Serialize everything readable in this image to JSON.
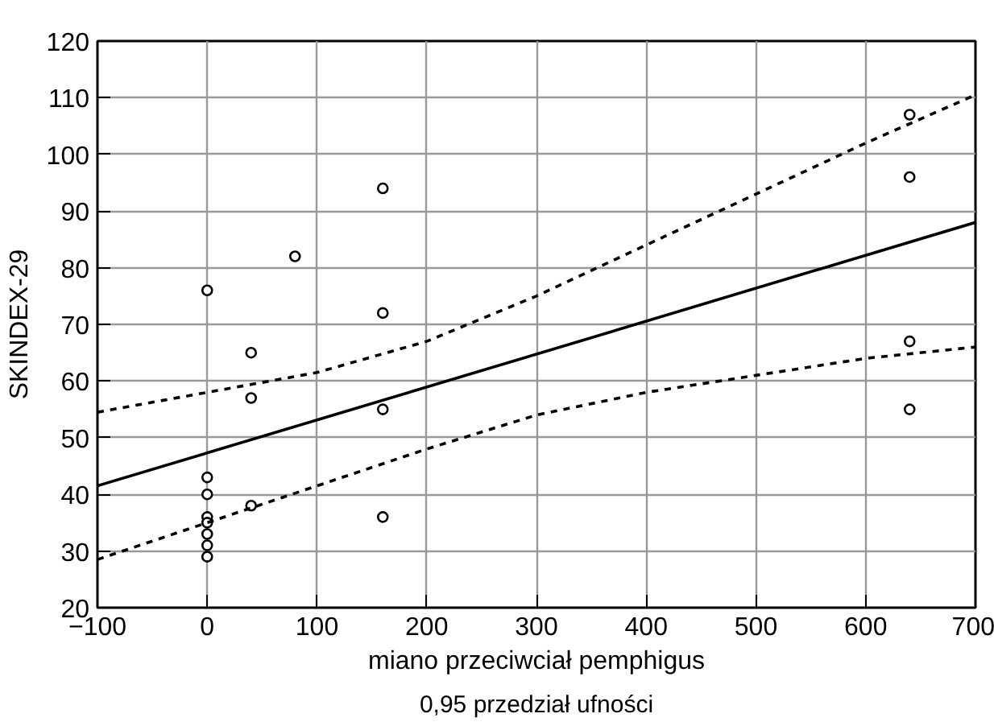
{
  "chart_data": {
    "type": "scatter",
    "xlabel": "miano przeciwciał pemphigus",
    "ylabel": "SKINDEX-29",
    "annotations": [
      "0,95 przedział ufności"
    ],
    "xlim": [
      -100,
      700
    ],
    "ylim": [
      20,
      120
    ],
    "xticks": [
      {
        "value": -100,
        "label": "−100"
      },
      0,
      100,
      200,
      300,
      400,
      500,
      600,
      700
    ],
    "yticks": [
      20,
      30,
      40,
      50,
      60,
      70,
      80,
      90,
      100,
      110,
      120
    ],
    "grid": true,
    "marker": "circle",
    "series": [
      {
        "color": "#000000",
        "x": [
          0,
          0,
          0,
          0,
          0,
          0,
          0,
          0,
          40,
          40,
          40,
          80,
          160,
          160,
          160,
          160,
          640,
          640,
          640,
          640
        ],
        "values": [
          76,
          43,
          40,
          36,
          35,
          33,
          31,
          29,
          65,
          57,
          38,
          82,
          94,
          72,
          55,
          36,
          107,
          96,
          67,
          55
        ]
      },
      {
        "type": "line",
        "color": "#000000",
        "line_style": "solid",
        "marker": "none",
        "x": [
          -100,
          700
        ],
        "values": [
          41.5,
          88
        ]
      },
      {
        "type": "line",
        "color": "#000000",
        "line_style": "dashed",
        "marker": "none",
        "x": [
          -100,
          0,
          100,
          200,
          300,
          400,
          500,
          600,
          700
        ],
        "values": [
          54.5,
          58,
          61.5,
          67,
          75,
          84,
          93,
          102,
          110.5
        ]
      },
      {
        "type": "line",
        "color": "#000000",
        "line_style": "dashed",
        "marker": "none",
        "x": [
          -100,
          0,
          100,
          200,
          300,
          400,
          500,
          600,
          700
        ],
        "values": [
          28.5,
          35,
          41.5,
          48,
          54,
          58,
          61,
          64,
          66
        ]
      }
    ]
  }
}
